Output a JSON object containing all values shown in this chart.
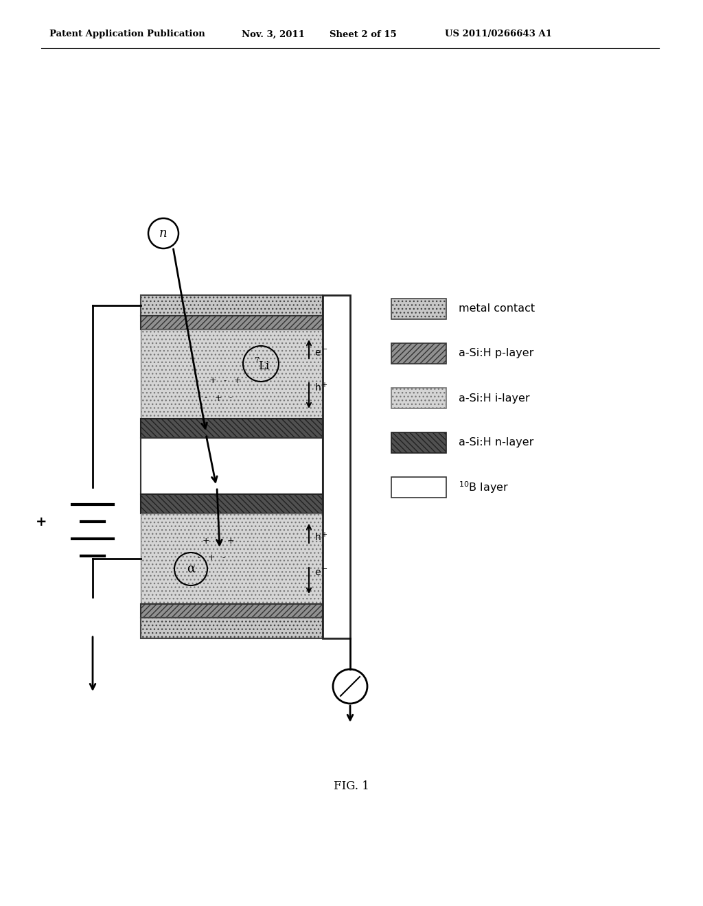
{
  "bg_color": "#ffffff",
  "header_text1": "Patent Application Publication",
  "header_text2": "Nov. 3, 2011",
  "header_text3": "Sheet 2 of 15",
  "header_text4": "US 2011/0266643 A1",
  "fig_label": "FIG. 1"
}
